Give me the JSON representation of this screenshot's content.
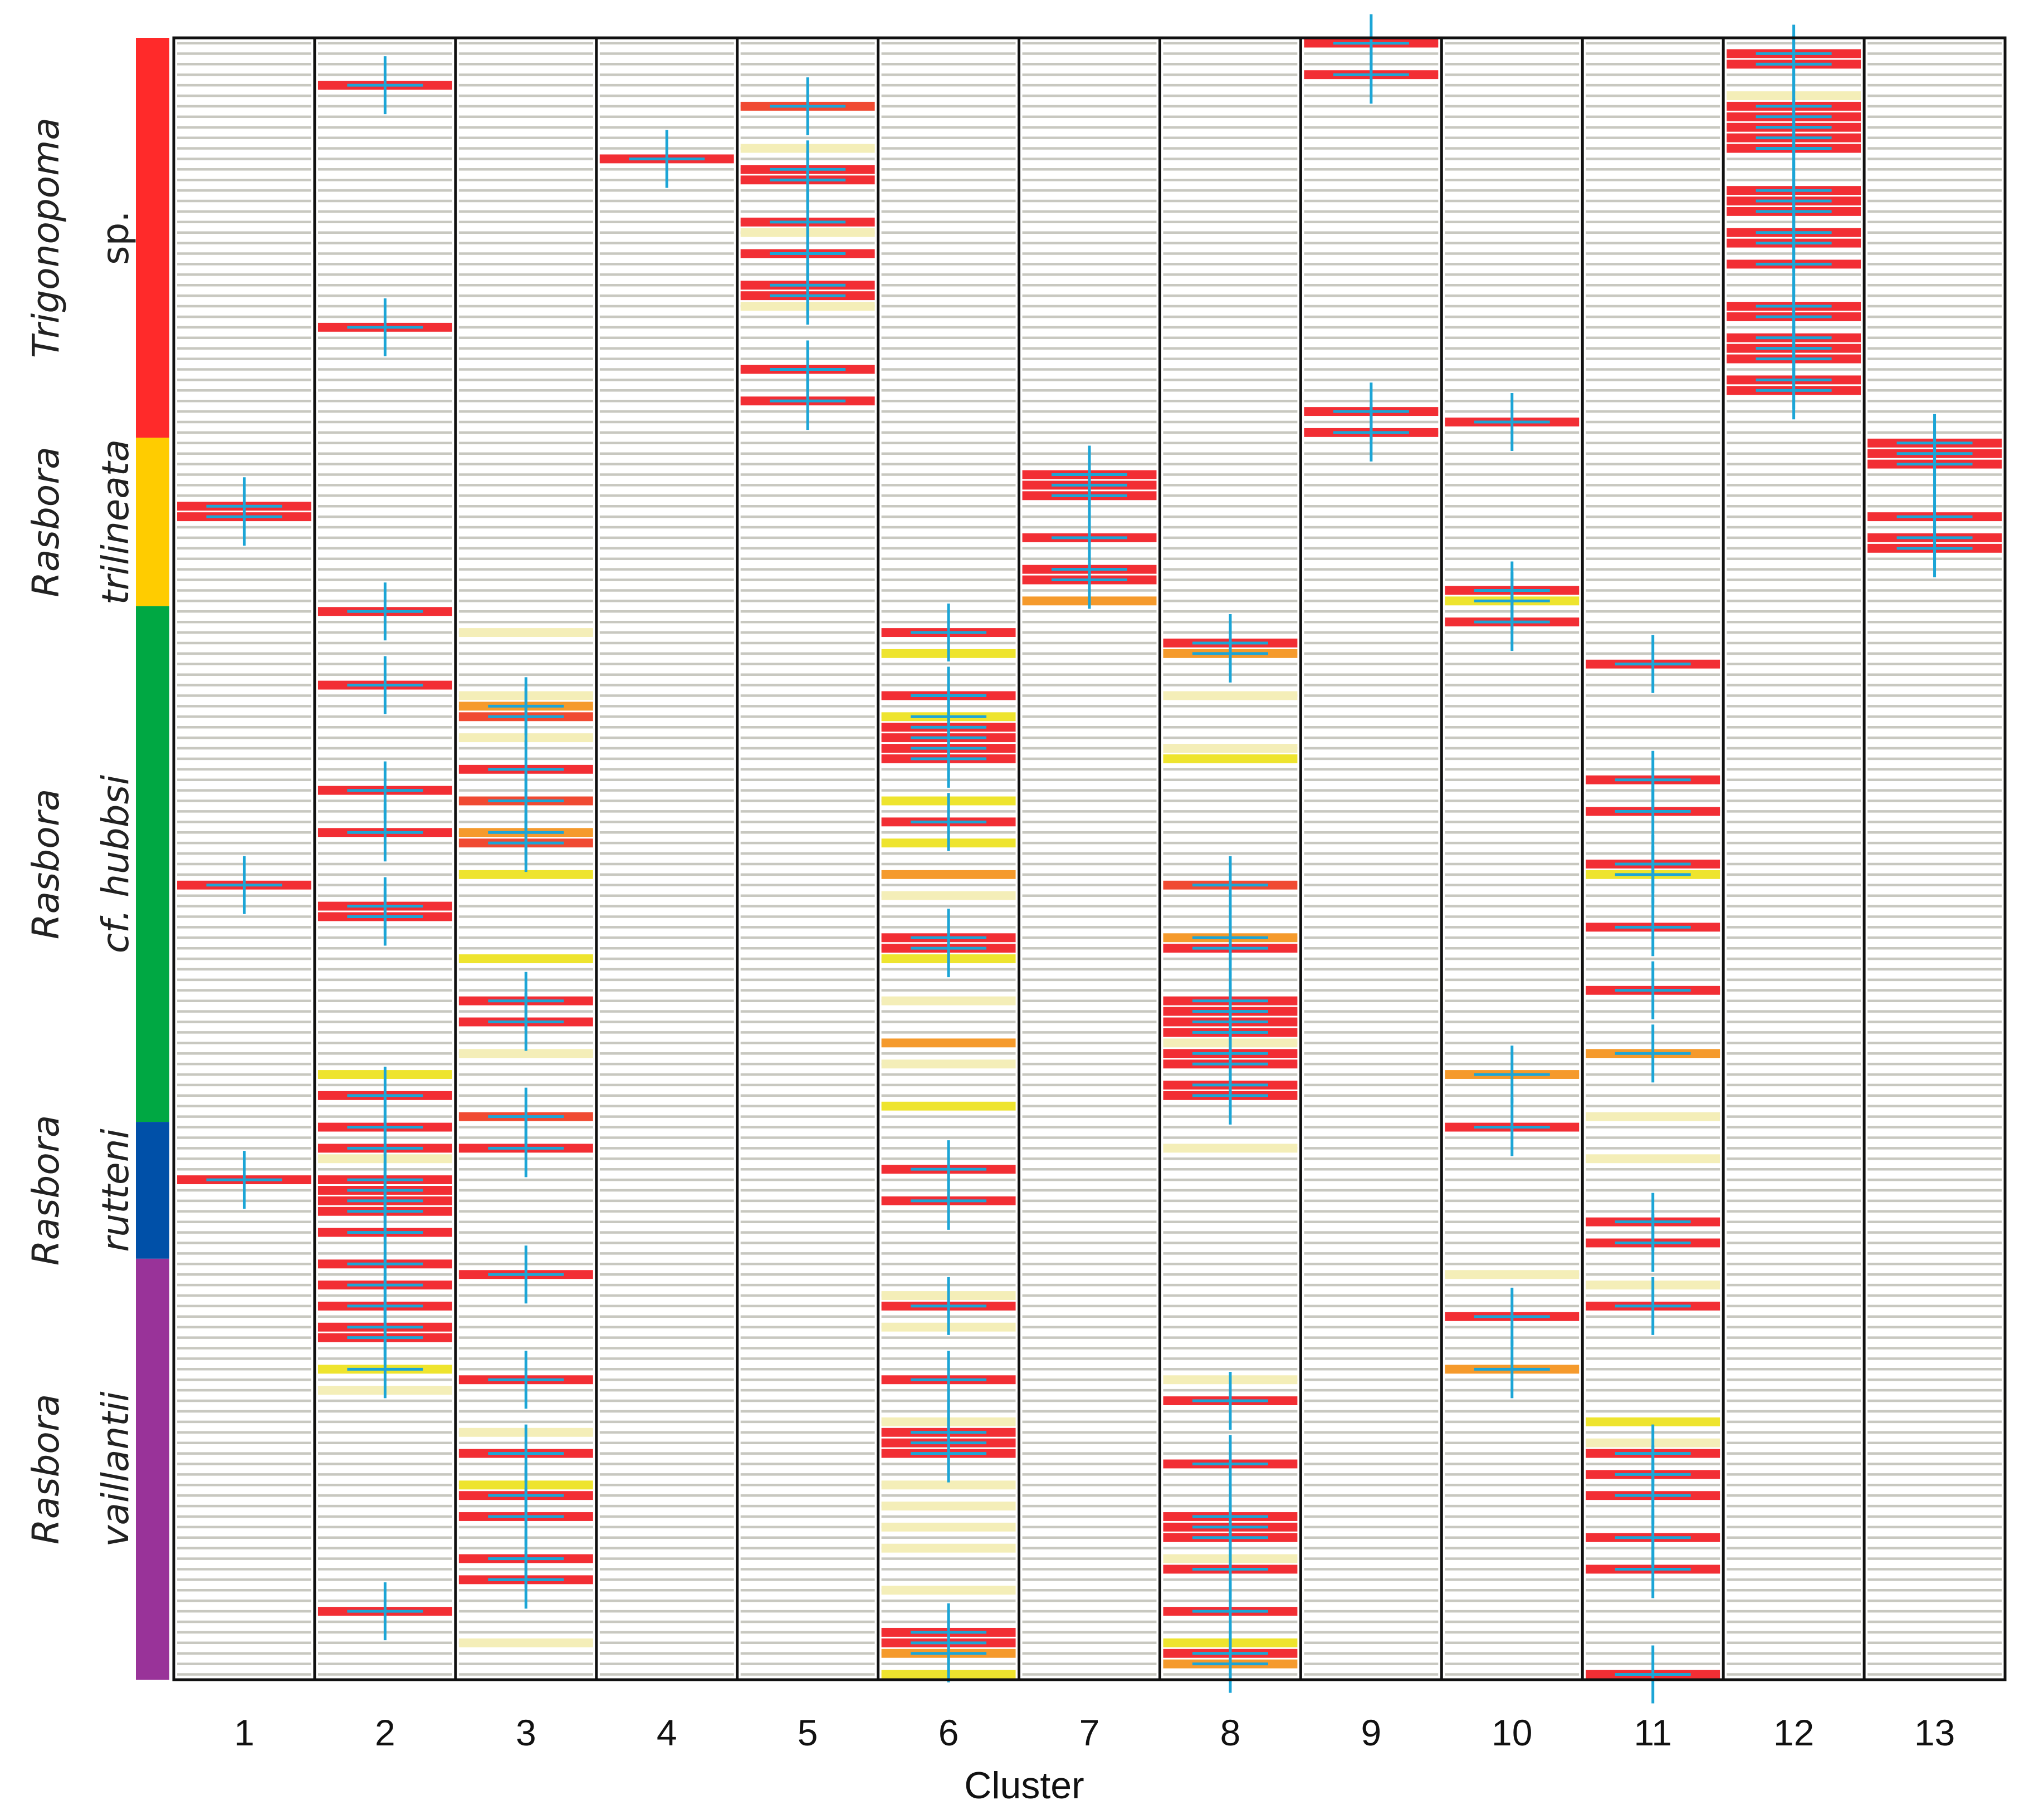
{
  "chart_data": {
    "type": "heatmap",
    "title": "",
    "xlabel": "Cluster",
    "ylabel": "",
    "n_rows": 156,
    "clusters": [
      "1",
      "2",
      "3",
      "4",
      "5",
      "6",
      "7",
      "8",
      "9",
      "10",
      "11",
      "12",
      "13"
    ],
    "level_colors": {
      "0": "#c8c8c0",
      "1": "#f4eeb8",
      "2": "#eee42e",
      "3": "#f59a2c",
      "4": "#f04a32",
      "5": "#f22e34"
    },
    "marker_color": "#1ca5d6",
    "species": [
      {
        "genus": "Trigonopoma",
        "epithet": "sp.",
        "color": "#ff2a2a",
        "rows": [
          0,
          37
        ]
      },
      {
        "genus": "Rasbora",
        "epithet": "trilineata",
        "color": "#ffcc00",
        "rows": [
          38,
          53
        ]
      },
      {
        "genus": "Rasbora",
        "epithet": "cf. hubbsi",
        "color": "#00a843",
        "rows": [
          54,
          102
        ]
      },
      {
        "genus": "Rasbora",
        "epithet": "rutteni",
        "color": "#0050a8",
        "rows": [
          103,
          115
        ]
      },
      {
        "genus": "Rasbora",
        "epithet": "vaillantii",
        "color": "#993399",
        "rows": [
          116,
          155
        ]
      }
    ],
    "cells": [
      {
        "cluster": 1,
        "marks": [
          [
            44,
            5,
            1
          ],
          [
            45,
            5,
            1
          ],
          [
            80,
            5,
            1
          ],
          [
            108,
            5,
            1
          ]
        ]
      },
      {
        "cluster": 2,
        "marks": [
          [
            4,
            5,
            1
          ],
          [
            27,
            5,
            1
          ],
          [
            54,
            5,
            1
          ],
          [
            61,
            5,
            1
          ],
          [
            71,
            5,
            1
          ],
          [
            75,
            5,
            1
          ],
          [
            82,
            5,
            1
          ],
          [
            83,
            5,
            1
          ],
          [
            98,
            2,
            0
          ],
          [
            100,
            5,
            1
          ],
          [
            103,
            5,
            1
          ],
          [
            105,
            5,
            1
          ],
          [
            106,
            1,
            0
          ],
          [
            108,
            5,
            1
          ],
          [
            109,
            5,
            1
          ],
          [
            110,
            5,
            1
          ],
          [
            111,
            5,
            1
          ],
          [
            113,
            5,
            1
          ],
          [
            116,
            5,
            1
          ],
          [
            118,
            5,
            1
          ],
          [
            120,
            5,
            1
          ],
          [
            122,
            5,
            1
          ],
          [
            123,
            5,
            1
          ],
          [
            126,
            2,
            1
          ],
          [
            128,
            1,
            0
          ],
          [
            149,
            5,
            1
          ]
        ]
      },
      {
        "cluster": 3,
        "marks": [
          [
            56,
            1,
            0
          ],
          [
            62,
            1,
            0
          ],
          [
            63,
            3,
            1
          ],
          [
            64,
            4,
            1
          ],
          [
            66,
            1,
            0
          ],
          [
            69,
            5,
            1
          ],
          [
            72,
            4,
            1
          ],
          [
            75,
            3,
            1
          ],
          [
            76,
            4,
            1
          ],
          [
            79,
            2,
            0
          ],
          [
            87,
            2,
            0
          ],
          [
            91,
            5,
            1
          ],
          [
            93,
            5,
            1
          ],
          [
            96,
            1,
            0
          ],
          [
            102,
            4,
            1
          ],
          [
            105,
            5,
            1
          ],
          [
            117,
            5,
            1
          ],
          [
            127,
            5,
            1
          ],
          [
            132,
            1,
            0
          ],
          [
            134,
            5,
            1
          ],
          [
            137,
            2,
            0
          ],
          [
            138,
            5,
            1
          ],
          [
            140,
            5,
            1
          ],
          [
            144,
            5,
            1
          ],
          [
            146,
            5,
            1
          ],
          [
            152,
            1,
            0
          ]
        ]
      },
      {
        "cluster": 4,
        "marks": [
          [
            11,
            5,
            1
          ]
        ]
      },
      {
        "cluster": 5,
        "marks": [
          [
            6,
            4,
            1
          ],
          [
            10,
            1,
            0
          ],
          [
            12,
            5,
            1
          ],
          [
            13,
            5,
            1
          ],
          [
            17,
            5,
            1
          ],
          [
            18,
            1,
            0
          ],
          [
            20,
            5,
            1
          ],
          [
            23,
            5,
            1
          ],
          [
            24,
            5,
            1
          ],
          [
            25,
            1,
            0
          ],
          [
            31,
            5,
            1
          ],
          [
            34,
            5,
            1
          ]
        ]
      },
      {
        "cluster": 6,
        "marks": [
          [
            56,
            5,
            1
          ],
          [
            58,
            2,
            0
          ],
          [
            62,
            5,
            1
          ],
          [
            64,
            2,
            1
          ],
          [
            65,
            5,
            1
          ],
          [
            66,
            5,
            1
          ],
          [
            67,
            5,
            1
          ],
          [
            68,
            5,
            1
          ],
          [
            72,
            2,
            0
          ],
          [
            74,
            5,
            1
          ],
          [
            76,
            2,
            0
          ],
          [
            79,
            3,
            0
          ],
          [
            81,
            1,
            0
          ],
          [
            85,
            5,
            1
          ],
          [
            86,
            5,
            1
          ],
          [
            87,
            2,
            0
          ],
          [
            91,
            1,
            0
          ],
          [
            95,
            3,
            0
          ],
          [
            97,
            1,
            0
          ],
          [
            101,
            2,
            0
          ],
          [
            107,
            5,
            1
          ],
          [
            110,
            5,
            1
          ],
          [
            119,
            1,
            0
          ],
          [
            120,
            5,
            1
          ],
          [
            122,
            1,
            0
          ],
          [
            127,
            5,
            1
          ],
          [
            131,
            1,
            0
          ],
          [
            132,
            5,
            1
          ],
          [
            133,
            5,
            1
          ],
          [
            134,
            5,
            1
          ],
          [
            137,
            1,
            0
          ],
          [
            139,
            1,
            0
          ],
          [
            141,
            1,
            0
          ],
          [
            143,
            1,
            0
          ],
          [
            147,
            1,
            0
          ],
          [
            151,
            5,
            1
          ],
          [
            152,
            5,
            1
          ],
          [
            153,
            3,
            1
          ],
          [
            155,
            2,
            0
          ]
        ]
      },
      {
        "cluster": 7,
        "marks": [
          [
            41,
            5,
            1
          ],
          [
            42,
            5,
            1
          ],
          [
            43,
            5,
            1
          ],
          [
            47,
            5,
            1
          ],
          [
            50,
            5,
            1
          ],
          [
            51,
            5,
            1
          ],
          [
            53,
            3,
            0
          ]
        ]
      },
      {
        "cluster": 8,
        "marks": [
          [
            57,
            5,
            1
          ],
          [
            58,
            3,
            1
          ],
          [
            62,
            1,
            0
          ],
          [
            67,
            1,
            0
          ],
          [
            68,
            2,
            0
          ],
          [
            80,
            4,
            1
          ],
          [
            85,
            3,
            1
          ],
          [
            86,
            5,
            1
          ],
          [
            91,
            5,
            1
          ],
          [
            92,
            5,
            1
          ],
          [
            93,
            5,
            1
          ],
          [
            94,
            5,
            1
          ],
          [
            95,
            1,
            0
          ],
          [
            96,
            5,
            1
          ],
          [
            97,
            5,
            1
          ],
          [
            99,
            5,
            1
          ],
          [
            100,
            5,
            1
          ],
          [
            105,
            1,
            0
          ],
          [
            127,
            1,
            0
          ],
          [
            129,
            5,
            1
          ],
          [
            135,
            5,
            1
          ],
          [
            140,
            5,
            1
          ],
          [
            141,
            5,
            1
          ],
          [
            142,
            5,
            1
          ],
          [
            144,
            1,
            0
          ],
          [
            145,
            5,
            1
          ],
          [
            149,
            5,
            1
          ],
          [
            152,
            2,
            0
          ],
          [
            153,
            5,
            1
          ],
          [
            154,
            3,
            1
          ]
        ]
      },
      {
        "cluster": 9,
        "marks": [
          [
            0,
            5,
            1
          ],
          [
            3,
            5,
            1
          ],
          [
            35,
            5,
            1
          ],
          [
            37,
            5,
            1
          ]
        ]
      },
      {
        "cluster": 10,
        "marks": [
          [
            36,
            5,
            1
          ],
          [
            52,
            5,
            1
          ],
          [
            53,
            2,
            1
          ],
          [
            55,
            5,
            1
          ],
          [
            98,
            3,
            1
          ],
          [
            103,
            5,
            1
          ],
          [
            117,
            1,
            0
          ],
          [
            121,
            5,
            1
          ],
          [
            126,
            3,
            1
          ]
        ]
      },
      {
        "cluster": 11,
        "marks": [
          [
            59,
            5,
            1
          ],
          [
            70,
            5,
            1
          ],
          [
            73,
            5,
            1
          ],
          [
            78,
            5,
            1
          ],
          [
            79,
            2,
            1
          ],
          [
            84,
            5,
            1
          ],
          [
            90,
            5,
            1
          ],
          [
            96,
            3,
            1
          ],
          [
            102,
            1,
            0
          ],
          [
            106,
            1,
            0
          ],
          [
            112,
            5,
            1
          ],
          [
            114,
            5,
            1
          ],
          [
            118,
            1,
            0
          ],
          [
            120,
            5,
            1
          ],
          [
            131,
            2,
            0
          ],
          [
            133,
            1,
            0
          ],
          [
            134,
            5,
            1
          ],
          [
            136,
            5,
            1
          ],
          [
            138,
            5,
            1
          ],
          [
            142,
            5,
            1
          ],
          [
            145,
            5,
            1
          ],
          [
            155,
            5,
            1
          ]
        ]
      },
      {
        "cluster": 12,
        "marks": [
          [
            1,
            5,
            1
          ],
          [
            2,
            5,
            1
          ],
          [
            5,
            1,
            0
          ],
          [
            6,
            5,
            1
          ],
          [
            7,
            5,
            1
          ],
          [
            8,
            5,
            1
          ],
          [
            9,
            5,
            1
          ],
          [
            10,
            5,
            1
          ],
          [
            14,
            5,
            1
          ],
          [
            15,
            5,
            1
          ],
          [
            16,
            5,
            1
          ],
          [
            18,
            5,
            1
          ],
          [
            19,
            5,
            1
          ],
          [
            21,
            5,
            1
          ],
          [
            25,
            5,
            1
          ],
          [
            26,
            5,
            1
          ],
          [
            28,
            5,
            1
          ],
          [
            29,
            5,
            1
          ],
          [
            30,
            5,
            1
          ],
          [
            32,
            5,
            1
          ],
          [
            33,
            5,
            1
          ]
        ]
      },
      {
        "cluster": 13,
        "marks": [
          [
            38,
            5,
            1
          ],
          [
            39,
            5,
            1
          ],
          [
            40,
            5,
            1
          ],
          [
            45,
            5,
            1
          ],
          [
            47,
            5,
            1
          ],
          [
            48,
            5,
            1
          ]
        ]
      }
    ]
  }
}
